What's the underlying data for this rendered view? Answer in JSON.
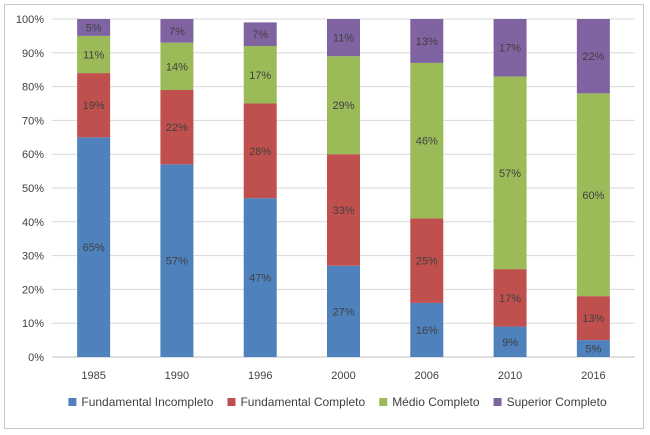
{
  "chart_data": {
    "type": "bar",
    "stacked": true,
    "title": "",
    "xlabel": "",
    "ylabel": "",
    "ylim": [
      0,
      100
    ],
    "y_ticks": [
      "0%",
      "10%",
      "20%",
      "30%",
      "40%",
      "50%",
      "60%",
      "70%",
      "80%",
      "90%",
      "100%"
    ],
    "grid": true,
    "legend_position": "bottom",
    "categories": [
      "1985",
      "1990",
      "1996",
      "2000",
      "2006",
      "2010",
      "2016"
    ],
    "series": [
      {
        "name": "Fundamental Incompleto",
        "color": "#4f81bd",
        "values": [
          65,
          57,
          47,
          27,
          16,
          9,
          5
        ],
        "labels": [
          "65%",
          "57%",
          "47%",
          "27%",
          "16%",
          "9%",
          "5%"
        ]
      },
      {
        "name": "Fundamental Completo",
        "color": "#c0504d",
        "values": [
          19,
          22,
          28,
          33,
          25,
          17,
          13
        ],
        "labels": [
          "19%",
          "22%",
          "28%",
          "33%",
          "25%",
          "17%",
          "13%"
        ]
      },
      {
        "name": "Médio Completo",
        "color": "#9bbb59",
        "values": [
          11,
          14,
          17,
          29,
          46,
          57,
          60
        ],
        "labels": [
          "11%",
          "14%",
          "17%",
          "29%",
          "46%",
          "57%",
          "60%"
        ]
      },
      {
        "name": "Superior Completo",
        "color": "#8064a2",
        "values": [
          5,
          7,
          7,
          11,
          13,
          17,
          22
        ],
        "labels": [
          "5%",
          "7%",
          "7%",
          "11%",
          "13%",
          "17%",
          "22%"
        ]
      }
    ]
  }
}
